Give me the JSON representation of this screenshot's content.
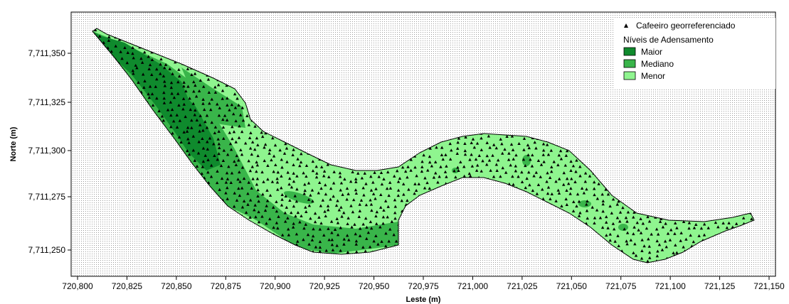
{
  "chart_data": {
    "type": "map",
    "xlabel": "Leste (m)",
    "ylabel": "Norte (m)",
    "xlim": [
      720800,
      721150
    ],
    "ylim": [
      7711240,
      7711370
    ],
    "x_ticks": [
      "720,800",
      "720,825",
      "720,850",
      "720,875",
      "720,900",
      "720,925",
      "720,950",
      "720,975",
      "721,000",
      "721,025",
      "721,050",
      "721,075",
      "721,100",
      "721,125",
      "721,150"
    ],
    "y_ticks": [
      "7,711,250",
      "7,711,275",
      "7,711,300",
      "7,711,325",
      "7,711,350"
    ],
    "legend": {
      "points_label": "Cafeeiro georreferenciado",
      "title": "Níveis de Adensamento",
      "classes": [
        {
          "name": "Maior",
          "color": "#0f8a2d"
        },
        {
          "name": "Mediano",
          "color": "#39b54a"
        },
        {
          "name": "Menor",
          "color": "#8ff58f"
        }
      ]
    },
    "colors": {
      "background_dots": "#9a9a9a",
      "points": "#000000",
      "outline": "#000000"
    }
  }
}
